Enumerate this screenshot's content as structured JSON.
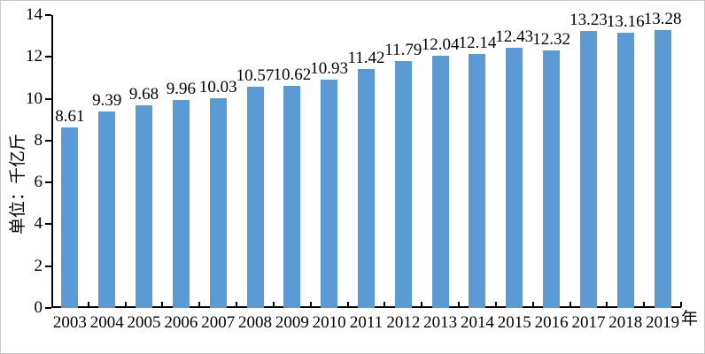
{
  "chart_data": {
    "type": "bar",
    "title": "",
    "categories": [
      "2003",
      "2004",
      "2005",
      "2006",
      "2007",
      "2008",
      "2009",
      "2010",
      "2011",
      "2012",
      "2013",
      "2014",
      "2015",
      "2016",
      "2017",
      "2018",
      "2019"
    ],
    "values": [
      8.61,
      9.39,
      9.68,
      9.96,
      10.03,
      10.57,
      10.62,
      10.93,
      11.42,
      11.79,
      12.04,
      12.14,
      12.43,
      12.32,
      13.23,
      13.16,
      13.28
    ],
    "ylabel": "单位：千亿斤",
    "xlabel": "年",
    "ylim": [
      0,
      14
    ],
    "yticks": [
      0,
      2,
      4,
      6,
      8,
      10,
      12,
      14
    ],
    "grid": false,
    "legend_position": "none",
    "data_labels": true,
    "value_decimals": 2,
    "colors": {
      "bar": "#5B9BD5",
      "axis": "#000000",
      "text": "#000000",
      "frame_border": "#c9c9c9"
    }
  }
}
